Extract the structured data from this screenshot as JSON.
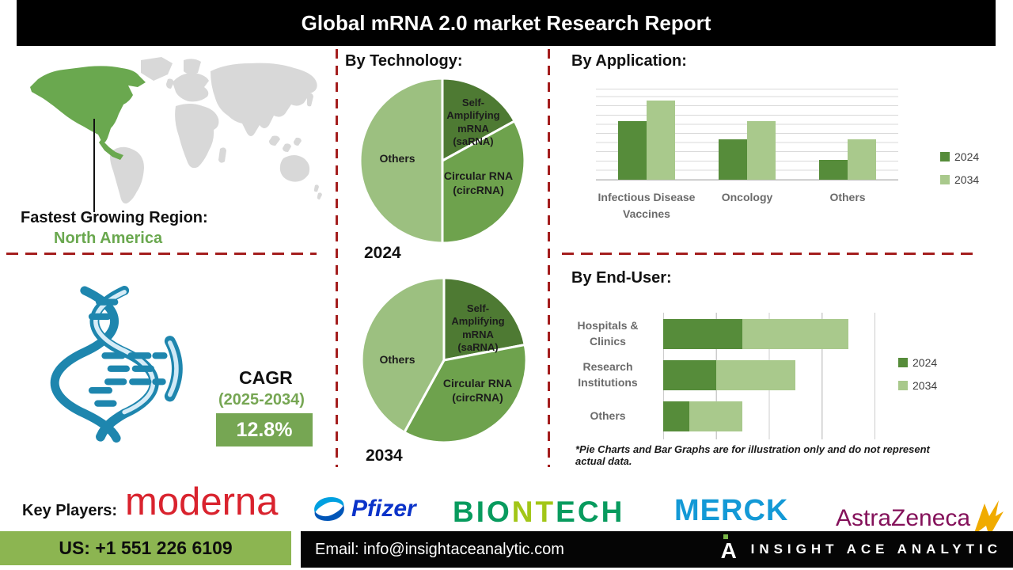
{
  "title": "Global mRNA 2.0 market Research Report",
  "region": {
    "label": "Fastest Growing Region:",
    "value": "North America"
  },
  "cagr": {
    "label": "CAGR",
    "period": "(2025-2034)",
    "value": "12.8%"
  },
  "sections": {
    "technology": "By Technology:"
  },
  "chart_data": [
    {
      "type": "pie",
      "year": "2024",
      "title": "By Technology: 2024",
      "slices": [
        {
          "label": "Self-Amplifying mRNA (saRNA)",
          "value": 17,
          "color": "#4e7a33"
        },
        {
          "label": "Circular RNA (circRNA)",
          "value": 33,
          "color": "#6ea24d"
        },
        {
          "label": "Others",
          "value": 50,
          "color": "#9cc080"
        }
      ],
      "legend_position": "none"
    },
    {
      "type": "pie",
      "year": "2034",
      "title": "By Technology: 2034",
      "slices": [
        {
          "label": "Self-Amplifying mRNA (saRNA)",
          "value": 22,
          "color": "#4e7a33"
        },
        {
          "label": "Circular RNA (circRNA)",
          "value": 36,
          "color": "#6ea24d"
        },
        {
          "label": "Others",
          "value": 42,
          "color": "#9cc080"
        }
      ],
      "legend_position": "none"
    },
    {
      "type": "bar",
      "title": "By Application:",
      "categories": [
        "Infectious Disease Vaccines",
        "Oncology",
        "Others"
      ],
      "series": [
        {
          "name": "2024",
          "color": "#568c3a",
          "values": [
            6.4,
            4.4,
            2.2
          ]
        },
        {
          "name": "2034",
          "color": "#a9c98c",
          "values": [
            8.6,
            6.4,
            4.4
          ]
        }
      ],
      "xlabel": "",
      "ylabel": "",
      "ylim": [
        0,
        10
      ],
      "grid": true,
      "legend_position": "right"
    },
    {
      "type": "bar-horizontal-stacked",
      "title": "By End-User:",
      "categories": [
        "Hospitals & Clinics",
        "Research Institutions",
        "Others"
      ],
      "series": [
        {
          "name": "2024",
          "color": "#568c3a",
          "values": [
            1.5,
            1.0,
            0.5
          ]
        },
        {
          "name": "2034",
          "color": "#a9c98c",
          "values": [
            2.0,
            1.5,
            1.0
          ]
        }
      ],
      "xlabel": "",
      "ylabel": "",
      "xlim": [
        0,
        4
      ],
      "grid": true,
      "legend_position": "right"
    }
  ],
  "footnote": "*Pie Charts and Bar Graphs are for illustration only and do not represent actual data.",
  "key_players": {
    "label": "Key Players:",
    "companies": [
      "moderna",
      "Pfizer",
      "BIONTECH",
      "MERCK",
      "AstraZeneca"
    ]
  },
  "footer": {
    "phone": "US: +1 551 226 6109",
    "email": "Email: info@insightaceanalytic.com",
    "brand": "INSIGHT ACE ANALYTIC"
  },
  "colors": {
    "accent_dark_green": "#568c3a",
    "accent_light_green": "#a9c98c",
    "map_highlight_green": "#6aa84f",
    "cagr_green": "#76a653",
    "phone_bar_green": "#8cb551",
    "dashed_divider_red": "#a41e1e",
    "title_bar_black": "#000000",
    "dna_icon_blue": "#1e86ae"
  }
}
